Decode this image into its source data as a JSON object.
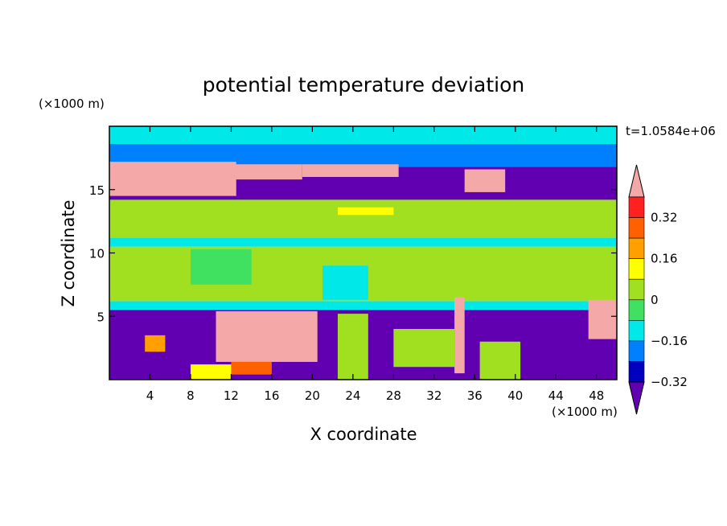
{
  "chart_data": {
    "type": "heatmap",
    "title": "potential temperature deviation",
    "xlabel": "X coordinate",
    "ylabel": "Z coordinate",
    "x_unit": "(×1000 m)",
    "y_unit": "(×1000 m)",
    "time_label": "t=1.0584e+06",
    "xlim": [
      0,
      50
    ],
    "ylim": [
      0,
      20
    ],
    "x_ticks": [
      4,
      8,
      12,
      16,
      20,
      24,
      28,
      32,
      36,
      40,
      44,
      48
    ],
    "y_ticks": [
      5,
      10,
      15
    ],
    "colorbar": {
      "levels": [
        -0.4,
        -0.32,
        -0.24,
        -0.16,
        -0.08,
        0,
        0.08,
        0.16,
        0.24,
        0.32,
        0.4
      ],
      "tick_labels": [
        "0.32",
        "0.16",
        "0",
        "−0.16",
        "−0.32"
      ],
      "tick_values": [
        0.32,
        0.16,
        0,
        -0.16,
        -0.32
      ],
      "colors": [
        "#f4a8a8",
        "#ff2020",
        "#ff6000",
        "#ffa000",
        "#ffff00",
        "#a0e020",
        "#40e060",
        "#00e8e8",
        "#0080ff",
        "#0000c0",
        "#6000b0"
      ],
      "extend": "both"
    },
    "regions": [
      {
        "x": [
          0,
          50
        ],
        "z": [
          0,
          5.5
        ],
        "level": -0.36
      },
      {
        "x": [
          0,
          50
        ],
        "z": [
          5.5,
          6.2
        ],
        "level": -0.12
      },
      {
        "x": [
          0,
          50
        ],
        "z": [
          6.2,
          10.5
        ],
        "level": 0.04
      },
      {
        "x": [
          0,
          50
        ],
        "z": [
          10.5,
          11.2
        ],
        "level": -0.1
      },
      {
        "x": [
          0,
          50
        ],
        "z": [
          11.2,
          14.2
        ],
        "level": 0.02
      },
      {
        "x": [
          0,
          50
        ],
        "z": [
          14.2,
          16.8
        ],
        "level": -0.36
      },
      {
        "x": [
          0,
          50
        ],
        "z": [
          16.8,
          18.6
        ],
        "level": -0.2
      },
      {
        "x": [
          0,
          50
        ],
        "z": [
          18.6,
          20
        ],
        "level": -0.14
      },
      {
        "x": [
          0,
          12.5
        ],
        "z": [
          14.5,
          17.2
        ],
        "level": 0.42
      },
      {
        "x": [
          11,
          19
        ],
        "z": [
          15.8,
          17.0
        ],
        "level": 0.42
      },
      {
        "x": [
          19,
          28.5
        ],
        "z": [
          16.0,
          17.0
        ],
        "level": 0.42
      },
      {
        "x": [
          35,
          39
        ],
        "z": [
          14.8,
          16.6
        ],
        "level": 0.42
      },
      {
        "x": [
          10.5,
          20.5
        ],
        "z": [
          1.4,
          5.4
        ],
        "level": 0.42
      },
      {
        "x": [
          34,
          35
        ],
        "z": [
          0.5,
          6.5
        ],
        "level": 0.42
      },
      {
        "x": [
          47.2,
          50
        ],
        "z": [
          3.2,
          6.3
        ],
        "level": 0.42
      },
      {
        "x": [
          29.5,
          32.5
        ],
        "z": [
          1.3,
          3.0
        ],
        "level": 0.3
      },
      {
        "x": [
          12,
          16
        ],
        "z": [
          0.4,
          1.4
        ],
        "level": 0.3
      },
      {
        "x": [
          3.5,
          5.5
        ],
        "z": [
          2.2,
          3.5
        ],
        "level": 0.22
      },
      {
        "x": [
          22.5,
          25.5
        ],
        "z": [
          0,
          5.2
        ],
        "level": 0.06
      },
      {
        "x": [
          28,
          34
        ],
        "z": [
          1.0,
          4.0
        ],
        "level": 0.06
      },
      {
        "x": [
          8,
          12
        ],
        "z": [
          0,
          1.2
        ],
        "level": 0.14
      },
      {
        "x": [
          36.5,
          40.5
        ],
        "z": [
          0,
          3.0
        ],
        "level": 0.06
      },
      {
        "x": [
          22.5,
          28
        ],
        "z": [
          13.0,
          13.6
        ],
        "level": 0.14
      },
      {
        "x": [
          8,
          14
        ],
        "z": [
          7.5,
          10.3
        ],
        "level": -0.04
      },
      {
        "x": [
          21,
          25.5
        ],
        "z": [
          6.3,
          9.0
        ],
        "level": -0.1
      },
      {
        "x": [
          0,
          50
        ],
        "z": [
          11.6,
          12.6
        ],
        "level": 0.02
      }
    ]
  }
}
